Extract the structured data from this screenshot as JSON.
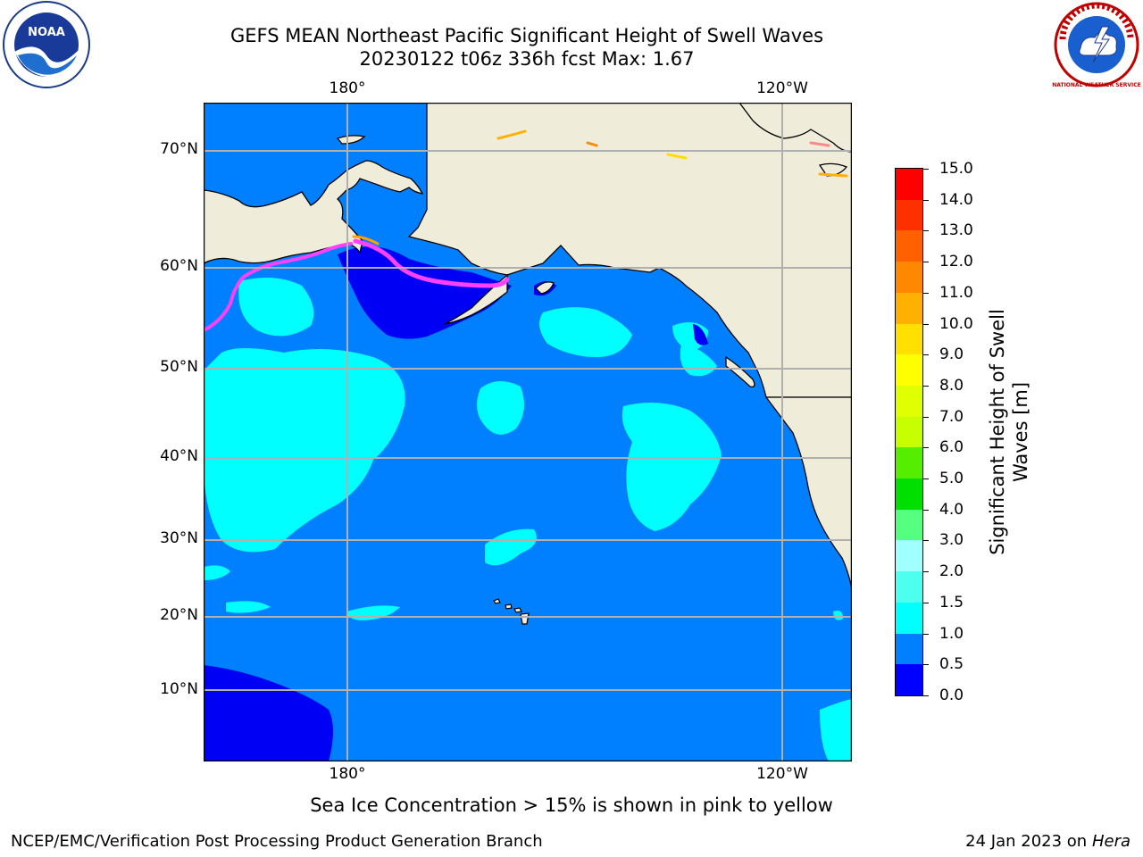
{
  "title_line1": "GEFS MEAN Northeast Pacific Significant Height of Swell Waves",
  "title_line2": "20230122 t06z 336h fcst   Max: 1.67",
  "logos": {
    "left": "noaa-logo",
    "left_text": "NOAA",
    "right": "nws-logo",
    "right_text": "NATIONAL WEATHER SERVICE"
  },
  "map": {
    "lon_labels_top": [
      "180°",
      "120°W"
    ],
    "lon_labels_bottom": [
      "180°",
      "120°W"
    ],
    "lat_labels": [
      "70°N",
      "60°N",
      "50°N",
      "40°N",
      "30°N",
      "20°N",
      "10°N"
    ],
    "colors": {
      "land": "#efedda",
      "ocean_main": "#0080ff",
      "ocean_low": "#0000f5",
      "ocean_light": "#00ffff",
      "ice": "#ff40ff",
      "grid": "#b0b0b0"
    }
  },
  "colorbar": {
    "label": "Significant Height of Swell Waves [m]",
    "label_line1": "Significant Height of Swell",
    "label_line2": "Waves [m]",
    "ticks": [
      "0.0",
      "0.5",
      "1.0",
      "1.5",
      "2.0",
      "3.0",
      "4.0",
      "5.0",
      "6.0",
      "7.0",
      "8.0",
      "9.0",
      "10.0",
      "11.0",
      "12.0",
      "13.0",
      "14.0",
      "15.0"
    ],
    "colors": [
      "#0000ff",
      "#0080ff",
      "#00ffff",
      "#4dffee",
      "#a0ffff",
      "#55ff80",
      "#00e000",
      "#55ee00",
      "#c8ff00",
      "#e0ff00",
      "#ffff00",
      "#ffe000",
      "#ffb000",
      "#ff8800",
      "#ff6000",
      "#ff3000",
      "#ff0000"
    ]
  },
  "note": "Sea Ice Concentration > 15% is shown in pink to yellow",
  "footer_left": "NCEP/EMC/Verification Post Processing Product Generation Branch",
  "footer_right_date": "24 Jan 2023 on ",
  "footer_right_machine": "Hera"
}
